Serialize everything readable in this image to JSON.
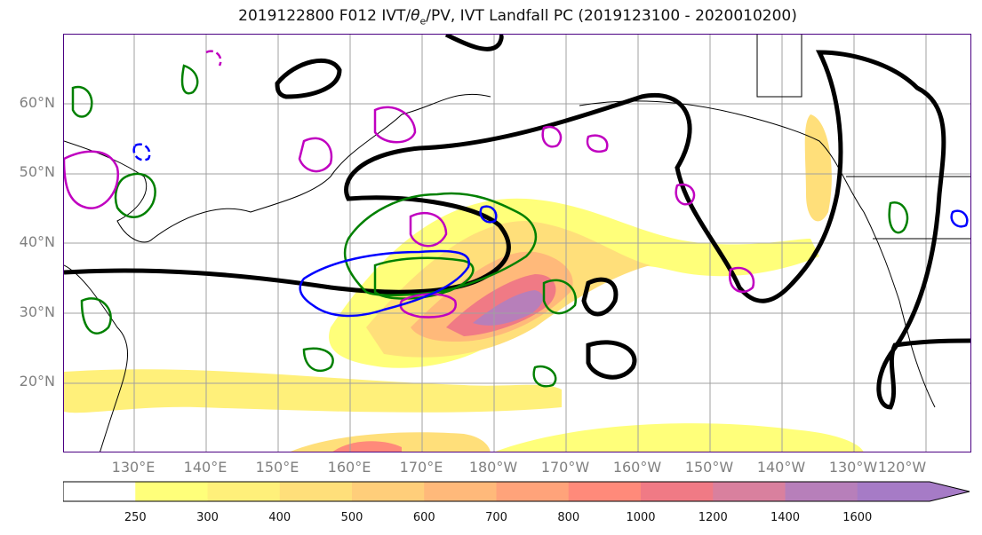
{
  "title": "2019122800 F012 IVT/θe/PV, IVT Landfall PC (2019123100 - 2020010200)",
  "map": {
    "lat_labels": [
      "60°N",
      "50°N",
      "40°N",
      "30°N",
      "20°N"
    ],
    "lon_labels": [
      "130°E",
      "140°E",
      "150°E",
      "160°E",
      "170°E",
      "180°W",
      "170°W",
      "160°W",
      "150°W",
      "140°W",
      "130°W",
      "120°W"
    ]
  },
  "colorbar": {
    "levels": [
      "250",
      "300",
      "400",
      "500",
      "600",
      "700",
      "800",
      "1000",
      "1200",
      "1400",
      "1600"
    ],
    "colors": [
      "#ffffff",
      "#ffff7a",
      "#fff07a",
      "#ffdf7a",
      "#ffce7a",
      "#ffb97a",
      "#ffa37a",
      "#ff8a7a",
      "#f07a85",
      "#d9809e",
      "#b77fba",
      "#a67bc6"
    ]
  }
}
